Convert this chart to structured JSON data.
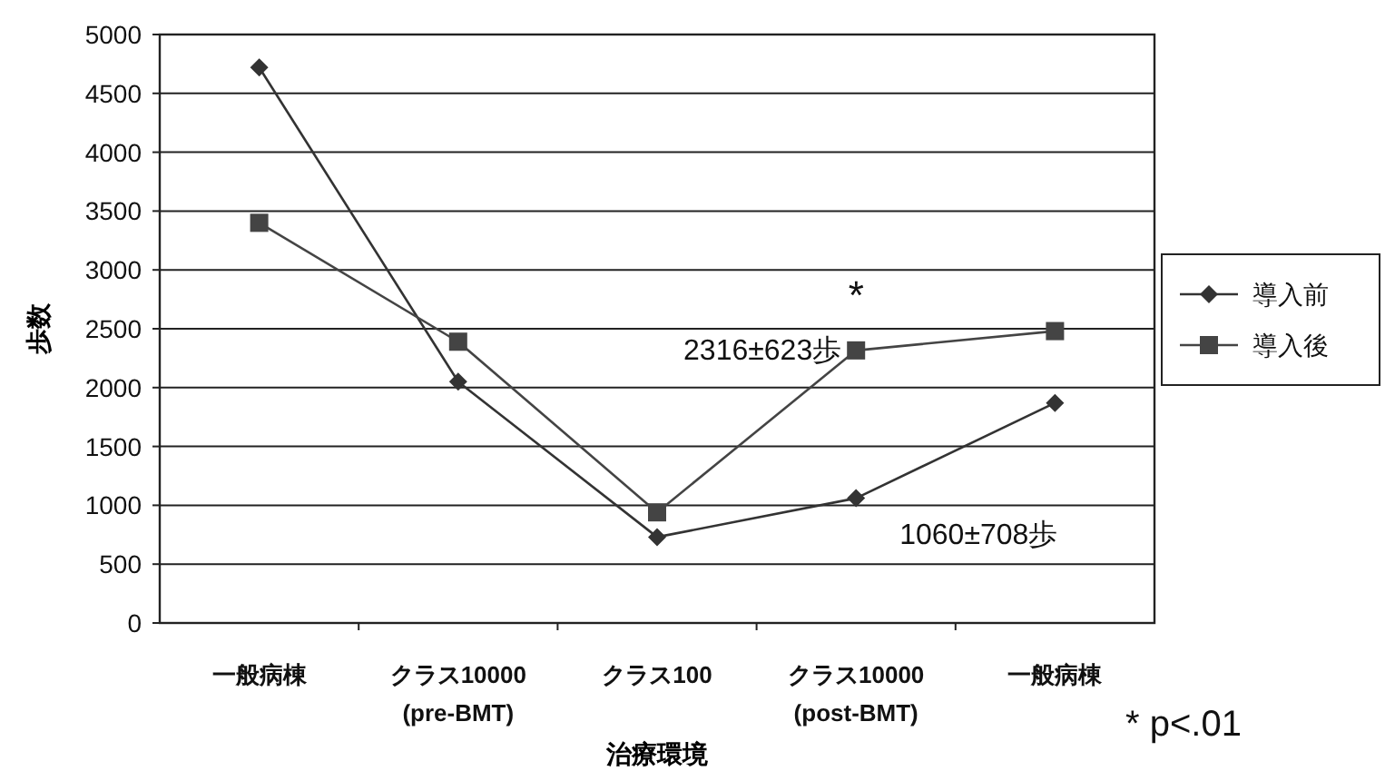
{
  "chart_data": {
    "type": "line",
    "xlabel": "治療環境",
    "ylabel": "歩数",
    "categories": [
      "一般病棟",
      "クラス10000\n(pre-BMT)",
      "クラス100",
      "クラス10000\n(post-BMT)",
      "一般病棟"
    ],
    "series": [
      {
        "name": "導入前",
        "color": "#333333",
        "marker": "diamond",
        "values": [
          4720,
          2050,
          730,
          1060,
          1870
        ]
      },
      {
        "name": "導入後",
        "color": "#444444",
        "marker": "square",
        "values": [
          3400,
          2390,
          940,
          2316,
          2480
        ]
      }
    ],
    "ylim": [
      0,
      5000
    ],
    "yticks": [
      0,
      500,
      1000,
      1500,
      2000,
      2500,
      3000,
      3500,
      4000,
      4500,
      5000
    ],
    "grid": "y",
    "legend": "right",
    "line_style": "solid",
    "annotations": [
      {
        "text": "2316±623歩",
        "x": "クラス10000\n(post-BMT)",
        "y": 2316
      },
      {
        "text": "1060±708歩",
        "x": "クラス10000\n(post-BMT)",
        "y": 1060
      },
      {
        "text": "*",
        "x": "クラス10000\n(post-BMT)",
        "y": 2316
      },
      "* p<.01"
    ]
  }
}
